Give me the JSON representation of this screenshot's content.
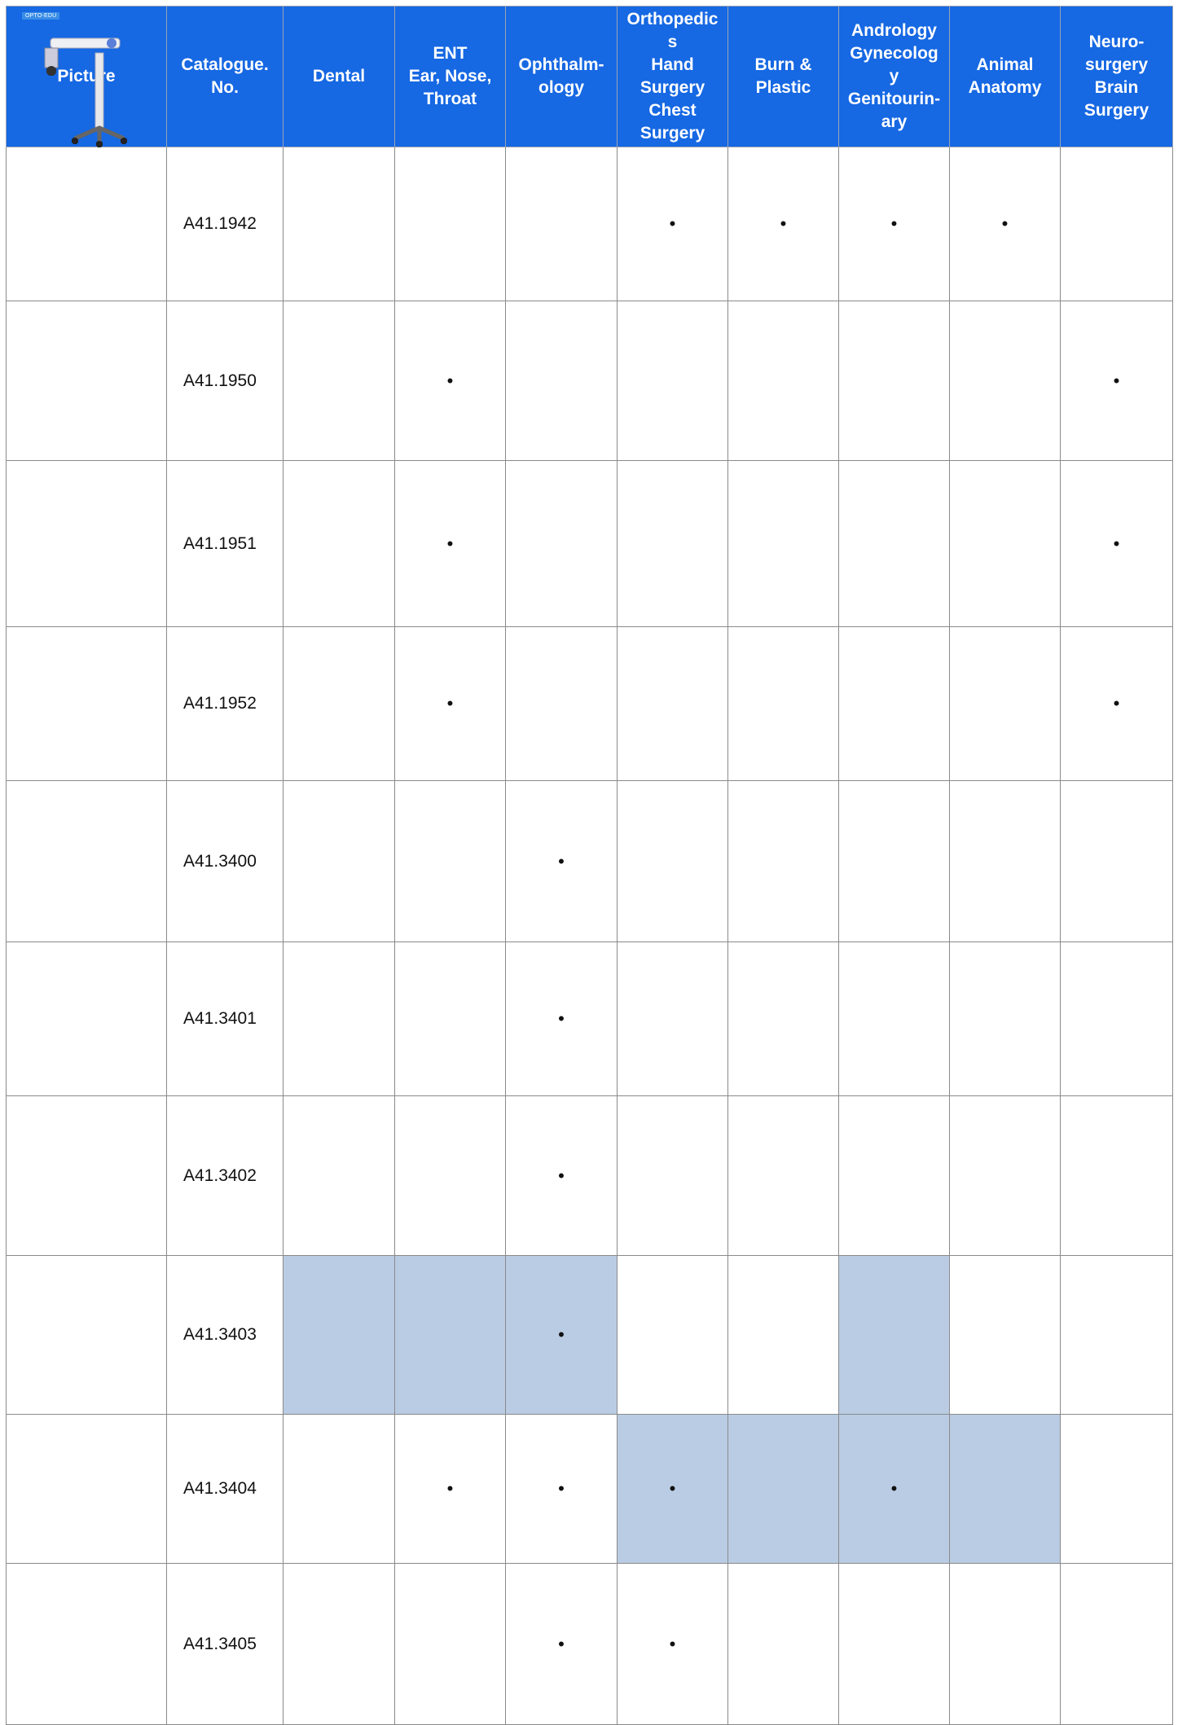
{
  "table": {
    "header": [
      "Picture",
      "Catalogue.\nNo.",
      "Dental",
      "ENT\nEar, Nose,\nThroat",
      "Ophthalm-\nology",
      "Orthopedic\ns\nHand\nSurgery\nChest\nSurgery",
      "Burn &\nPlastic",
      "Andrology\nGynecolog\ny\nGenitourin-\nary",
      "Animal\nAnatomy",
      "Neuro-\nsurgery\nBrain\nSurgery"
    ],
    "badge": "OPTO-EDU",
    "shade_color": "#b9cce4",
    "rows": [
      {
        "catalogue": "A41.1942",
        "cells": [
          null,
          null,
          null,
          "•",
          "•",
          "•",
          "•",
          null
        ],
        "shaded": []
      },
      {
        "catalogue": "A41.1950",
        "cells": [
          null,
          "•",
          null,
          null,
          null,
          null,
          null,
          "•"
        ],
        "shaded": []
      },
      {
        "catalogue": "A41.1951",
        "cells": [
          null,
          "•",
          null,
          null,
          null,
          null,
          null,
          "•"
        ],
        "shaded": []
      },
      {
        "catalogue": "A41.1952",
        "cells": [
          null,
          "•",
          null,
          null,
          null,
          null,
          null,
          "•"
        ],
        "shaded": []
      },
      {
        "catalogue": "A41.3400",
        "cells": [
          null,
          null,
          "•",
          null,
          null,
          null,
          null,
          null
        ],
        "shaded": []
      },
      {
        "catalogue": "A41.3401",
        "cells": [
          null,
          null,
          "•",
          null,
          null,
          null,
          null,
          null
        ],
        "shaded": []
      },
      {
        "catalogue": "A41.3402",
        "cells": [
          null,
          null,
          "•",
          null,
          null,
          null,
          null,
          null
        ],
        "shaded": []
      },
      {
        "catalogue": "A41.3403",
        "cells": [
          null,
          null,
          "•",
          null,
          null,
          null,
          null,
          null
        ],
        "shaded": [
          0,
          1,
          2,
          5
        ]
      },
      {
        "catalogue": "A41.3404",
        "cells": [
          null,
          "•",
          "•",
          "•",
          null,
          "•",
          null,
          null
        ],
        "shaded": [
          3,
          4,
          5,
          6
        ]
      },
      {
        "catalogue": "A41.3405",
        "cells": [
          null,
          null,
          "•",
          "•",
          null,
          null,
          null,
          null
        ],
        "shaded": []
      }
    ]
  }
}
